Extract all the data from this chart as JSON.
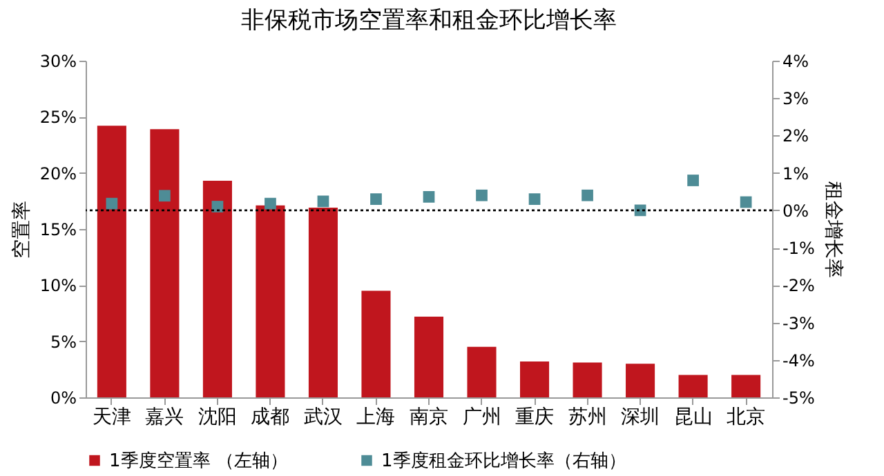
{
  "chart_data": {
    "type": "bar",
    "title": "非保税市场空置率和租金环比增长率",
    "ylabel": "空置率",
    "y2label": "租金增长率",
    "categories": [
      "天津",
      "嘉兴",
      "沈阳",
      "成都",
      "武汉",
      "上海",
      "南京",
      "广州",
      "重庆",
      "苏州",
      "深圳",
      "昆山",
      "北京"
    ],
    "series": [
      {
        "name": "1季度空置率 （左轴）",
        "color": "#c0161e",
        "values": [
          24.2,
          23.9,
          19.3,
          17.1,
          16.9,
          9.5,
          7.2,
          4.5,
          3.2,
          3.1,
          3.0,
          2.0,
          2.0
        ]
      },
      {
        "name": "1季度租金环比增长率（右轴）",
        "type": "scatter",
        "axis": "y2",
        "color": "#4e8c96",
        "values": [
          0.18,
          0.39,
          0.1,
          0.18,
          0.24,
          0.3,
          0.36,
          0.4,
          0.3,
          0.4,
          0.0,
          0.8,
          0.22
        ]
      }
    ],
    "ylim": [
      0,
      30
    ],
    "yticks": [
      {
        "value": 0,
        "label": "0%"
      },
      {
        "value": 5,
        "label": "5%"
      },
      {
        "value": 10,
        "label": "10%"
      },
      {
        "value": 15,
        "label": "15%"
      },
      {
        "value": 20,
        "label": "20%"
      },
      {
        "value": 25,
        "label": "25%"
      },
      {
        "value": 30,
        "label": "30%"
      }
    ],
    "y2lim": [
      -5,
      4
    ],
    "y2ticks": [
      {
        "value": -5,
        "label": "-5%"
      },
      {
        "value": -4,
        "label": "-4%"
      },
      {
        "value": -3,
        "label": "-3%"
      },
      {
        "value": -2,
        "label": "-2%"
      },
      {
        "value": -1,
        "label": "-1%"
      },
      {
        "value": 0,
        "label": "0%"
      },
      {
        "value": 1,
        "label": "1%"
      },
      {
        "value": 2,
        "label": "2%"
      },
      {
        "value": 3,
        "label": "3%"
      },
      {
        "value": 4,
        "label": "4%"
      }
    ],
    "ref_lines": [
      {
        "axis": "y2",
        "value": 0,
        "line_style": "dotted",
        "color": "#000000"
      }
    ],
    "marker": "square",
    "legend": "bottom",
    "grid": false
  }
}
